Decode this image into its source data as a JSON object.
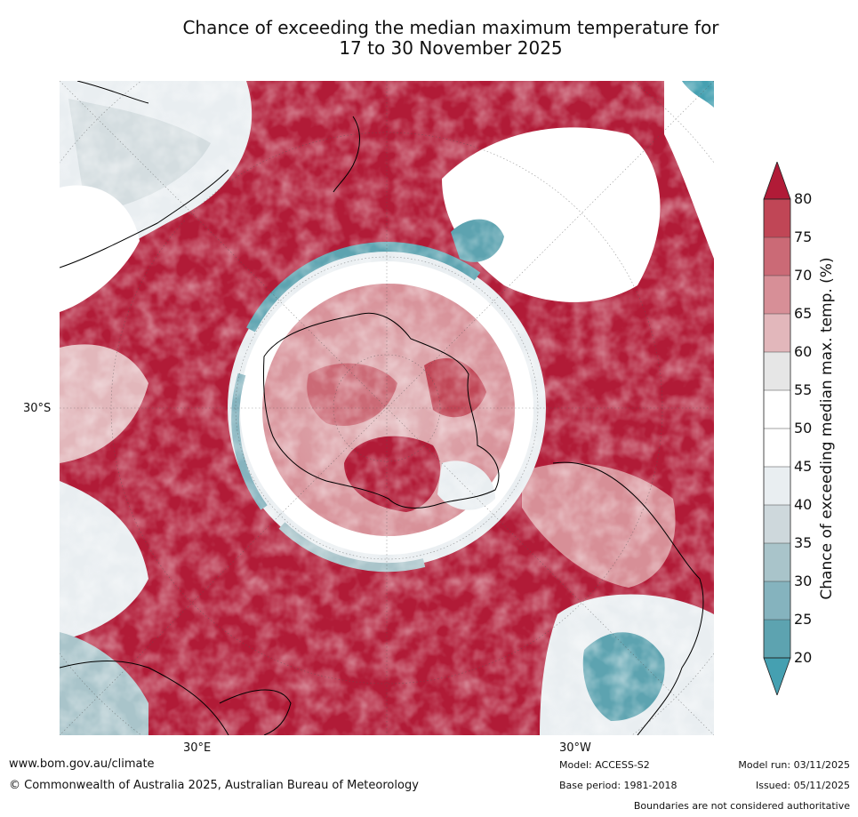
{
  "title_line1": "Chance of exceeding the median maximum temperature for",
  "title_line2": "17 to 30 November 2025",
  "axis": {
    "lat_label": "30°S",
    "lon_east_label": "30°E",
    "lon_west_label": "30°W"
  },
  "colorbar": {
    "label": "Chance of exceeding median max. temp. (%)",
    "ticks": [
      "80",
      "75",
      "70",
      "65",
      "60",
      "55",
      "50",
      "45",
      "40",
      "35",
      "30",
      "25",
      "20"
    ],
    "colors": [
      "#b11b37",
      "#c04656",
      "#cb6a76",
      "#d78f97",
      "#e2b7bb",
      "#e6e6e6",
      "#ffffff",
      "#ffffff",
      "#e9eef1",
      "#ced8dc",
      "#a9c4ca",
      "#85b3be",
      "#5da3b0",
      "#45a0b1"
    ]
  },
  "footer": {
    "website": "www.bom.gov.au/climate",
    "copyright": "© Commonwealth of Australia 2025, Australian Bureau of Meteorology",
    "model": "Model: ACCESS-S2",
    "base_period": "Base period: 1981-2018",
    "model_run": "Model run: 03/11/2025",
    "issued": "Issued: 05/11/2025",
    "disclaimer": "Boundaries are not considered authoritative"
  }
}
